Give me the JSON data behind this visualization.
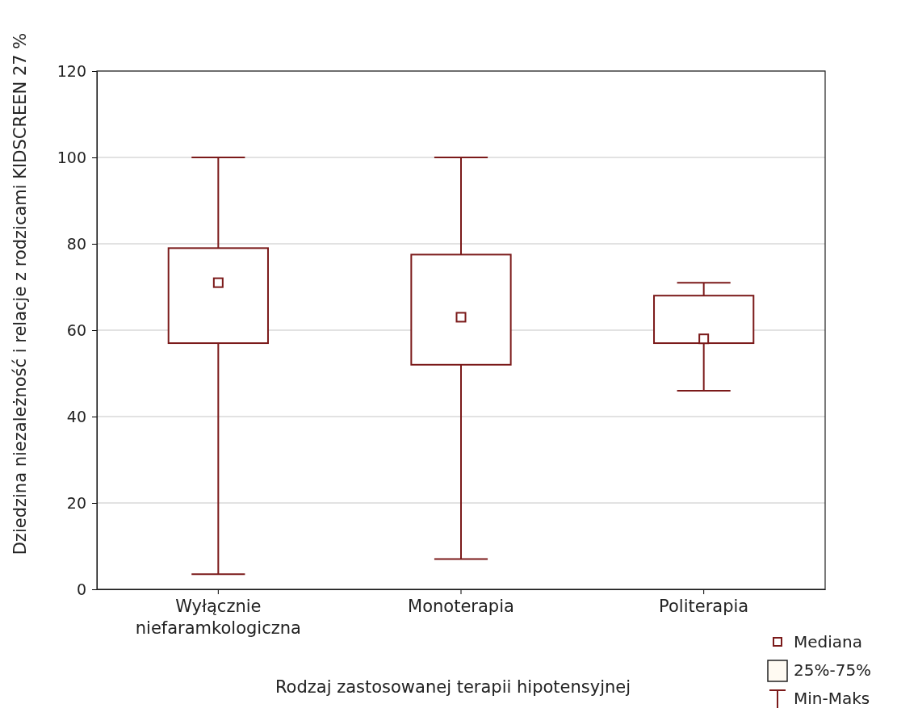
{
  "chart_data": {
    "type": "box",
    "xlabel": "Rodzaj zastosowanej terapii hipotensyjnej",
    "ylabel": "Dziedzina niezależność i relacje z rodzicami KIDSCREEN 27 %",
    "categories": [
      "Wyłącznie niefaramkologiczna",
      "Monoterapia",
      "Politerapia"
    ],
    "boxes": [
      {
        "low": 3.5,
        "q1": 57,
        "median": 71,
        "q3": 79,
        "high": 100
      },
      {
        "low": 7,
        "q1": 52,
        "median": 63,
        "q3": 77.5,
        "high": 100
      },
      {
        "low": 46,
        "q1": 57,
        "median": 58,
        "q3": 68,
        "high": 71
      }
    ],
    "color": "#7b1a1a",
    "ylim": [
      0,
      120
    ],
    "yticks": [
      0,
      20,
      40,
      60,
      80,
      100,
      120
    ],
    "grid": "y",
    "marker": "square",
    "annotations": [
      "Mediana",
      "25%-75%",
      "Min-Maks"
    ]
  }
}
